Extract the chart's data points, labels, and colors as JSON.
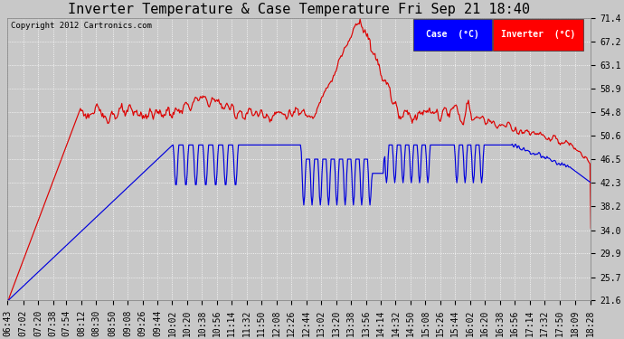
{
  "title": "Inverter Temperature & Case Temperature Fri Sep 21 18:40",
  "copyright": "Copyright 2012 Cartronics.com",
  "legend_case_label": "Case  (°C)",
  "legend_inv_label": "Inverter  (°C)",
  "yticks": [
    21.6,
    25.7,
    29.9,
    34.0,
    38.2,
    42.3,
    46.5,
    50.6,
    54.8,
    58.9,
    63.1,
    67.2,
    71.4
  ],
  "ymin": 21.6,
  "ymax": 71.4,
  "bg_color": "#c8c8c8",
  "plot_bg_color": "#c8c8c8",
  "grid_color": "#ffffff",
  "red_color": "#dd0000",
  "blue_color": "#0000dd",
  "title_fontsize": 11,
  "tick_fontsize": 7
}
